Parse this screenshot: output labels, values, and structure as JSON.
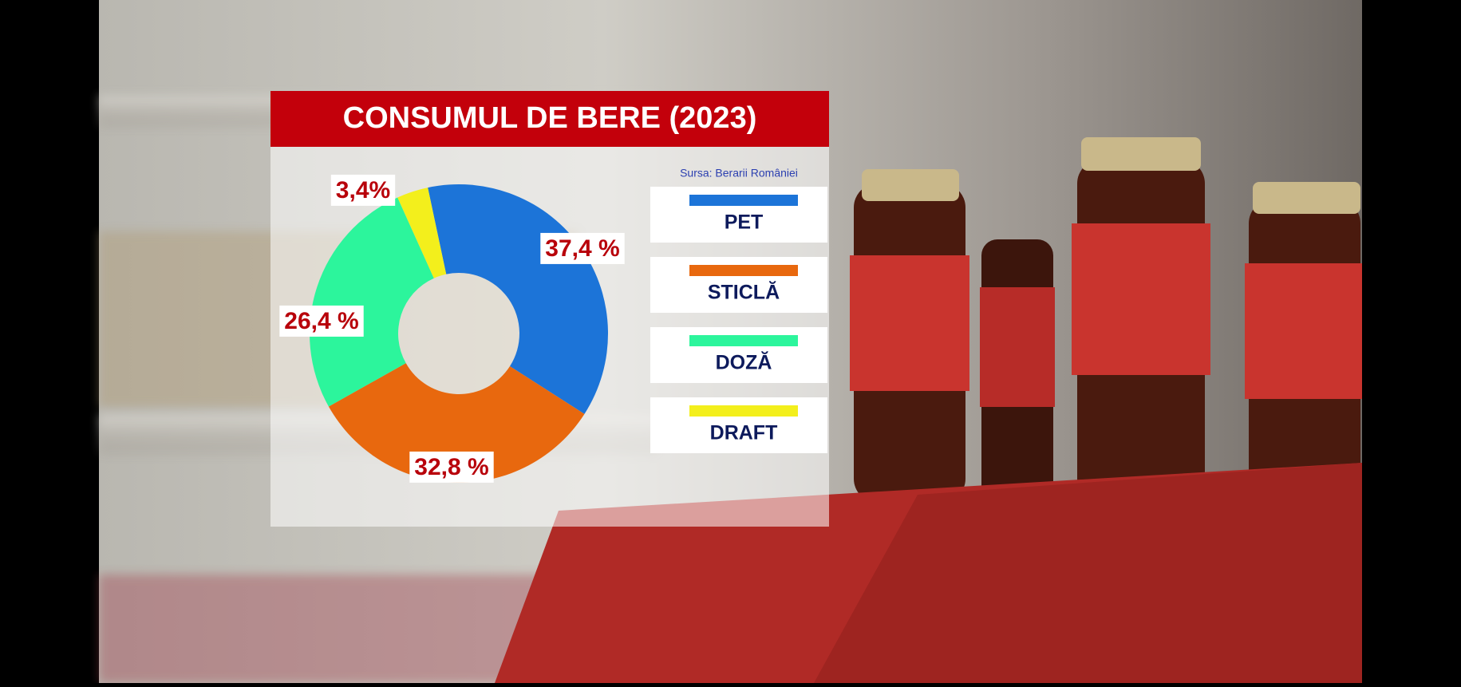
{
  "chart_data": {
    "type": "pie",
    "title": "CONSUMUL DE BERE (2023)",
    "source": "Sursa: Berarii României",
    "categories": [
      "PET",
      "STICLĂ",
      "DOZĂ",
      "DRAFT"
    ],
    "values": [
      37.4,
      32.8,
      26.4,
      3.4
    ],
    "value_labels": [
      "37,4 %",
      "32,8 %",
      "26,4 %",
      "3,4%"
    ],
    "colors": [
      "#1c74d8",
      "#e8680e",
      "#2cf59c",
      "#f3ef1c"
    ]
  }
}
